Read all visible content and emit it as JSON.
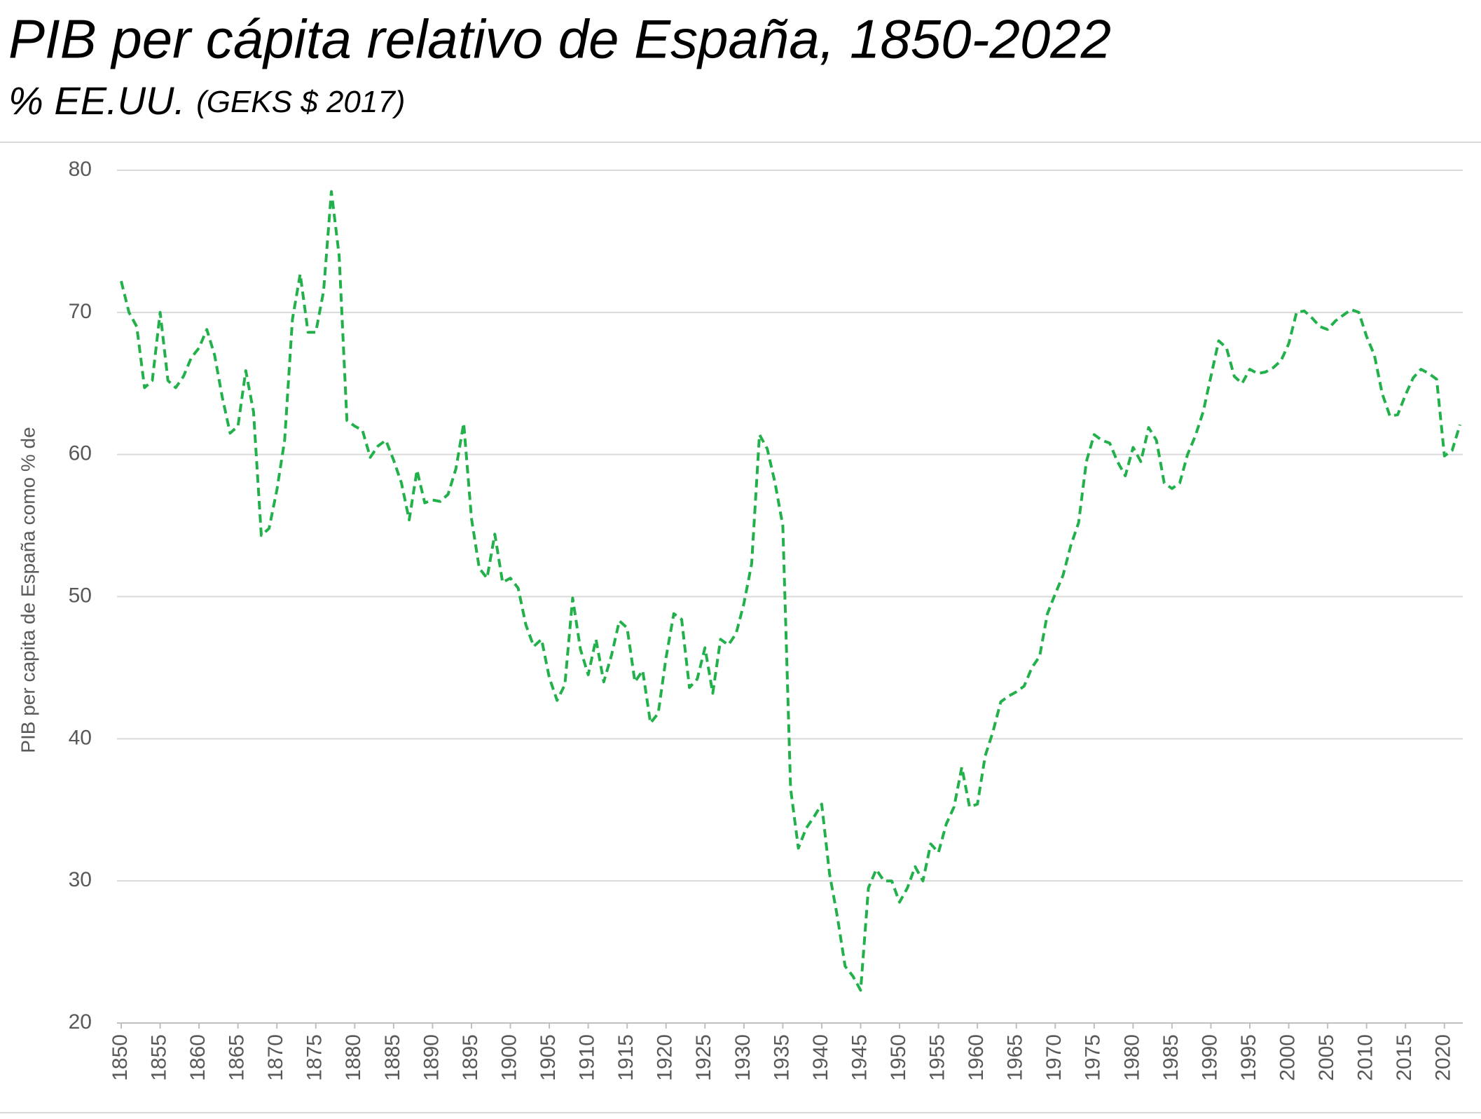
{
  "chart_data": {
    "type": "line",
    "title": "PIB per cápita relativo de España, 1850-2022",
    "subtitle": "% EE.UU.",
    "subtitle_note": "(GEKS $ 2017)",
    "y_label": "PIB per capita de España como % de",
    "x": [
      1850,
      1851,
      1852,
      1853,
      1854,
      1855,
      1856,
      1857,
      1858,
      1859,
      1860,
      1861,
      1862,
      1863,
      1864,
      1865,
      1866,
      1867,
      1868,
      1869,
      1870,
      1871,
      1872,
      1873,
      1874,
      1875,
      1876,
      1877,
      1878,
      1879,
      1880,
      1881,
      1882,
      1883,
      1884,
      1885,
      1886,
      1887,
      1888,
      1889,
      1890,
      1891,
      1892,
      1893,
      1894,
      1895,
      1896,
      1897,
      1898,
      1899,
      1900,
      1901,
      1902,
      1903,
      1904,
      1905,
      1906,
      1907,
      1908,
      1909,
      1910,
      1911,
      1912,
      1913,
      1914,
      1915,
      1916,
      1917,
      1918,
      1919,
      1920,
      1921,
      1922,
      1923,
      1924,
      1925,
      1926,
      1927,
      1928,
      1929,
      1930,
      1931,
      1932,
      1933,
      1934,
      1935,
      1936,
      1937,
      1938,
      1939,
      1940,
      1941,
      1942,
      1943,
      1944,
      1945,
      1946,
      1947,
      1948,
      1949,
      1950,
      1951,
      1952,
      1953,
      1954,
      1955,
      1956,
      1957,
      1958,
      1959,
      1960,
      1961,
      1962,
      1963,
      1964,
      1965,
      1966,
      1967,
      1968,
      1969,
      1970,
      1971,
      1972,
      1973,
      1974,
      1975,
      1976,
      1977,
      1978,
      1979,
      1980,
      1981,
      1982,
      1983,
      1984,
      1985,
      1986,
      1987,
      1988,
      1989,
      1990,
      1991,
      1992,
      1993,
      1994,
      1995,
      1996,
      1997,
      1998,
      1999,
      2000,
      2001,
      2002,
      2003,
      2004,
      2005,
      2006,
      2007,
      2008,
      2009,
      2010,
      2011,
      2012,
      2013,
      2014,
      2015,
      2016,
      2017,
      2018,
      2019,
      2020,
      2021,
      2022
    ],
    "series": [
      {
        "name": "España",
        "color": "#22b04b",
        "values": [
          72.2,
          70,
          69,
          64.7,
          65.2,
          70,
          65.2,
          64.7,
          65.5,
          66.8,
          67.5,
          68.8,
          67,
          64,
          61.5,
          62,
          65.9,
          63,
          54.3,
          54.8,
          57.5,
          61,
          69.5,
          72.7,
          68.6,
          68.6,
          71.5,
          78.5,
          74,
          62.4,
          62,
          61.7,
          59.8,
          60.6,
          61,
          59.6,
          58,
          55.4,
          58.9,
          56.6,
          56.8,
          56.7,
          57.2,
          59,
          62.2,
          55.5,
          52,
          51.3,
          54.4,
          51,
          51.3,
          50.6,
          48,
          46.5,
          47,
          44.3,
          42.7,
          43.8,
          49.9,
          46.3,
          44.5,
          47,
          44,
          45.9,
          48.3,
          47.8,
          44,
          44.8,
          41.1,
          41.8,
          45.7,
          48.8,
          48.4,
          43.6,
          44.2,
          46.4,
          43.2,
          47,
          46.6,
          47.4,
          49.5,
          52.3,
          61.4,
          60.4,
          58,
          55,
          36.5,
          32.3,
          33.7,
          34.5,
          35.4,
          30.5,
          27.5,
          24,
          23.3,
          22.3,
          29.5,
          30.8,
          30,
          30,
          28.5,
          29.5,
          31,
          30,
          32.6,
          32,
          34,
          35.2,
          38,
          35.2,
          35.4,
          38.8,
          40.5,
          42.6,
          43,
          43.3,
          43.7,
          45,
          45.8,
          48.8,
          50.2,
          51.5,
          53.6,
          55.2,
          59.5,
          61.4,
          61,
          60.8,
          59.5,
          58.5,
          60.5,
          59.5,
          61.9,
          61,
          58,
          57.6,
          58,
          60,
          61.3,
          63,
          65.5,
          68,
          67.5,
          65.5,
          65,
          66,
          65.7,
          65.8,
          66.1,
          66.6,
          67.8,
          70,
          70.1,
          69.6,
          69,
          68.8,
          69.4,
          69.8,
          70.2,
          70,
          68.3,
          67,
          64.3,
          62.7,
          62.8,
          64.2,
          65.4,
          66,
          65.7,
          65.3,
          59.9,
          60.3,
          62.1
        ]
      }
    ],
    "xlim": [
      1850,
      2022
    ],
    "xticks": [
      1850,
      1855,
      1860,
      1865,
      1870,
      1875,
      1880,
      1885,
      1890,
      1895,
      1900,
      1905,
      1910,
      1915,
      1920,
      1925,
      1930,
      1935,
      1940,
      1945,
      1950,
      1955,
      1960,
      1965,
      1970,
      1975,
      1980,
      1985,
      1990,
      1995,
      2000,
      2005,
      2010,
      2015,
      2020
    ],
    "ylim": [
      20,
      80
    ],
    "yticks": [
      20,
      30,
      40,
      50,
      60,
      70,
      80
    ],
    "grid": true,
    "dashed": true
  }
}
